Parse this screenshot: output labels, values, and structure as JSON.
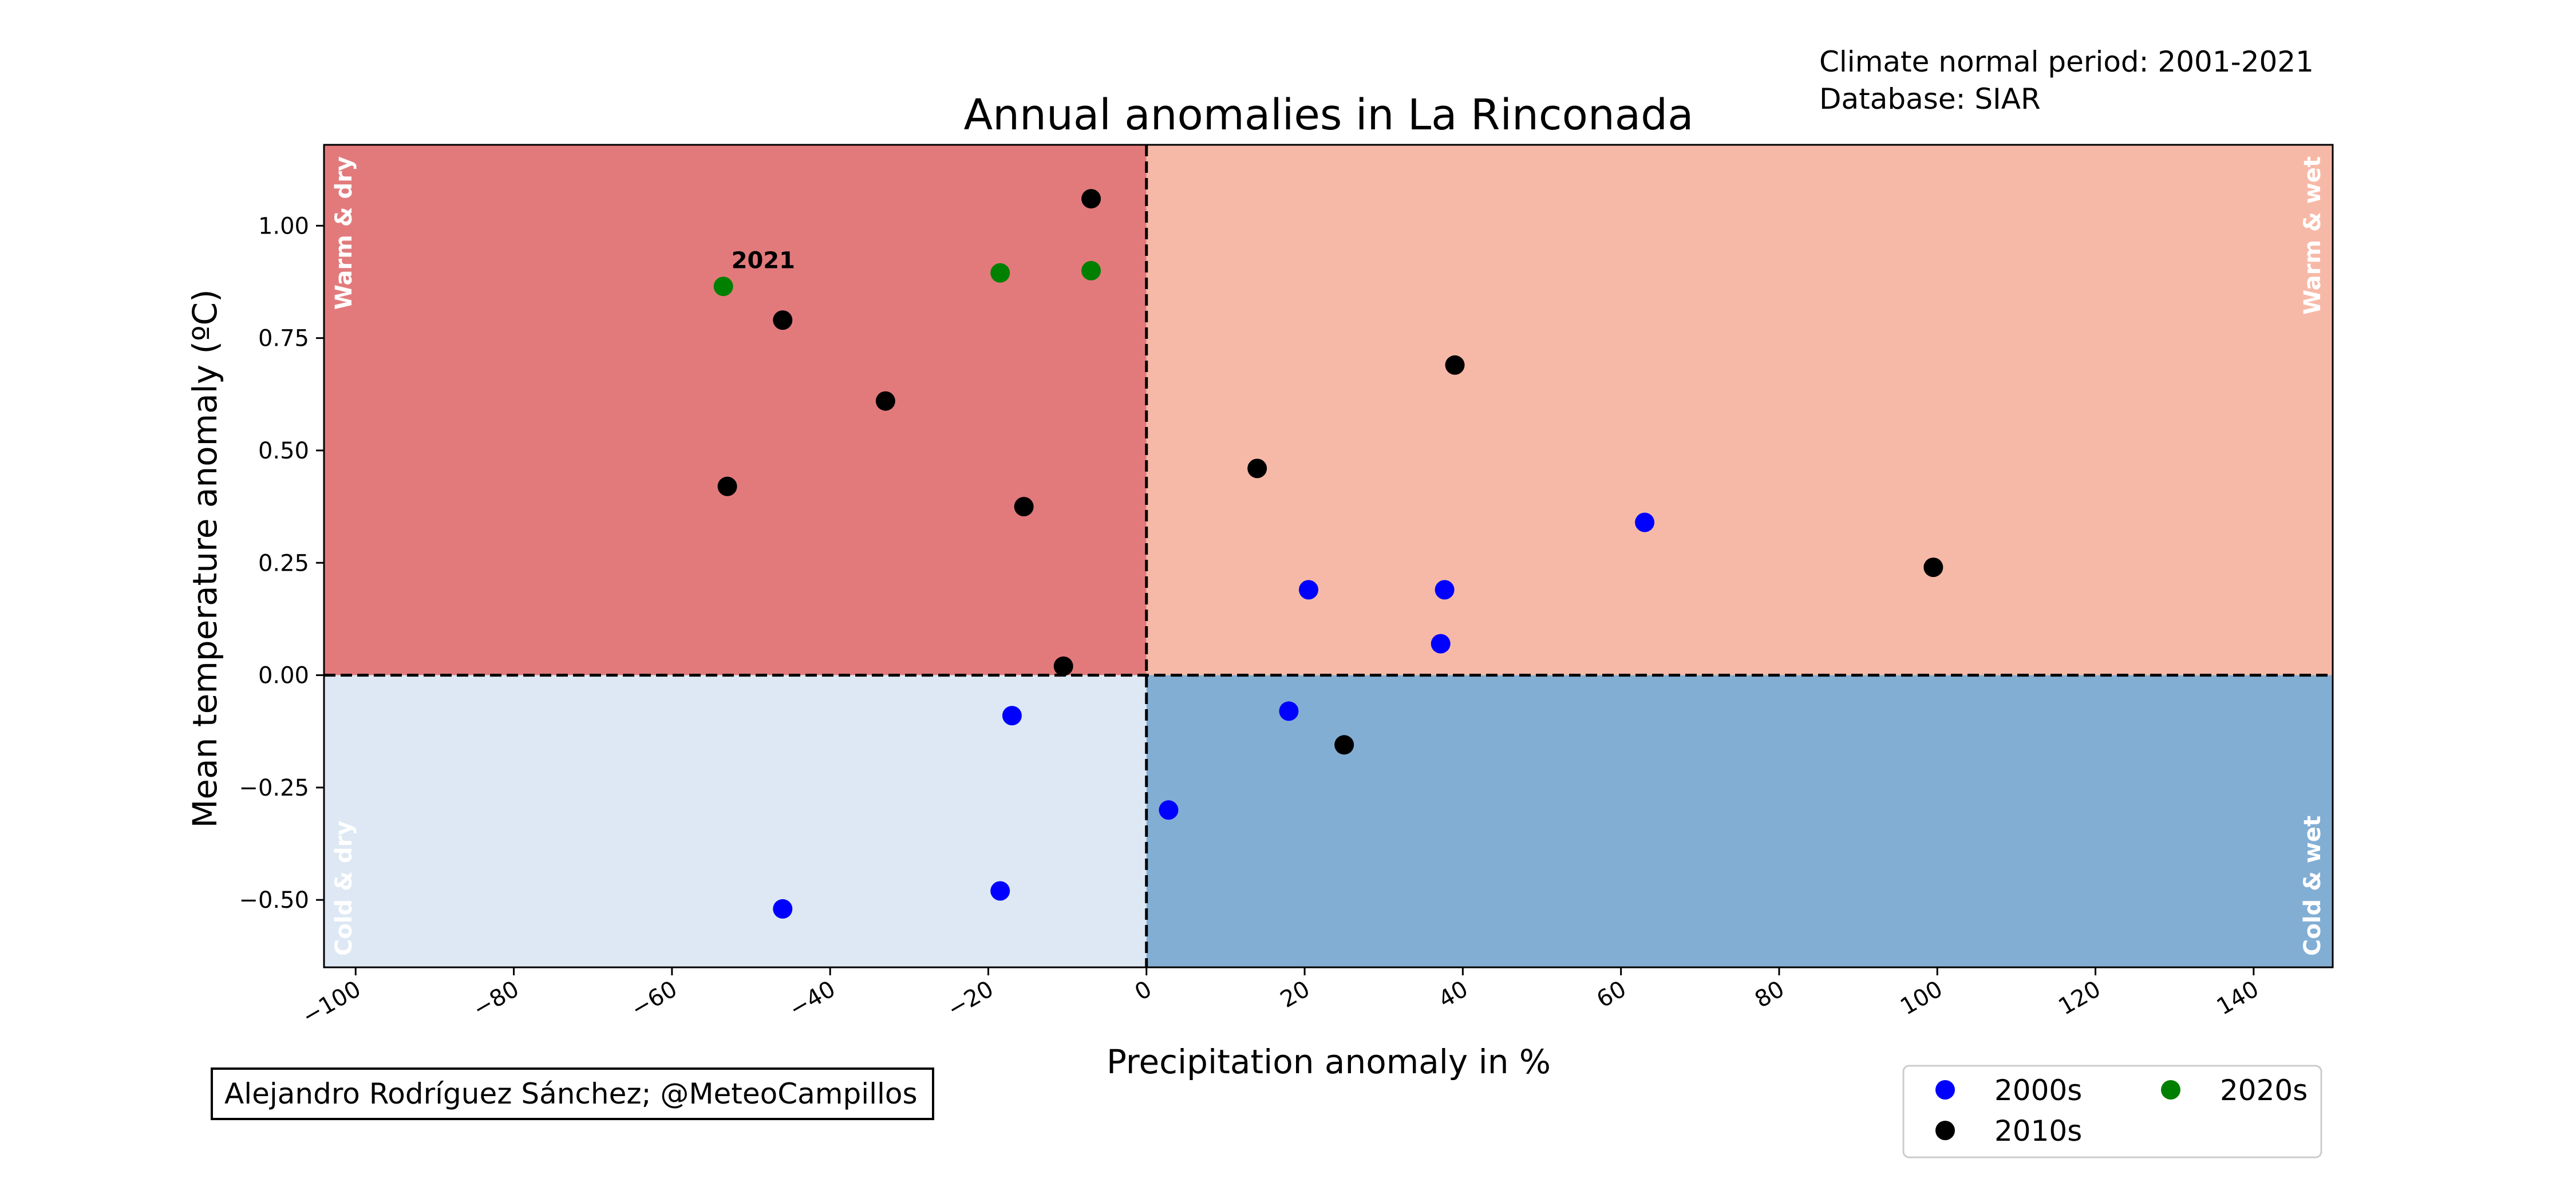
{
  "header": {
    "info_line1": "Climate normal period: 2001-2021",
    "info_line2": "Database: SIAR"
  },
  "credit": "Alejandro Rodríguez Sánchez; @MeteoCampillos",
  "colors": {
    "warm_dry": "#e27a7c",
    "warm_wet": "#f7b9a7",
    "cold_dry": "#dde8f4",
    "cold_wet": "#82aed4",
    "2000s": "#0000ff",
    "2010s": "#000000",
    "2020s": "#008000"
  },
  "chart_data": {
    "type": "scatter",
    "title": "Annual anomalies in La Rinconada",
    "xlabel": "Precipitation anomaly in %",
    "ylabel": "Mean temperature anomaly (ºC)",
    "xlim": [
      -104,
      150
    ],
    "ylim": [
      -0.65,
      1.18
    ],
    "xticks": [
      -100,
      -80,
      -60,
      -40,
      -20,
      0,
      20,
      40,
      60,
      80,
      100,
      120,
      140
    ],
    "xtick_labels": [
      "−100",
      "−80",
      "−60",
      "−40",
      "−20",
      "0",
      "20",
      "40",
      "60",
      "80",
      "100",
      "120",
      "140"
    ],
    "yticks": [
      -0.5,
      -0.25,
      0,
      0.25,
      0.5,
      0.75,
      1.0
    ],
    "ytick_labels": [
      "−0.50",
      "−0.25",
      "0.00",
      "0.25",
      "0.50",
      "0.75",
      "1.00"
    ],
    "grid": false,
    "reference_lines": {
      "x": 0,
      "y": 0,
      "style": "dashed"
    },
    "quadrant_labels": {
      "warm_dry": "Warm & dry",
      "warm_wet": "Warm & wet",
      "cold_dry": "Cold & dry",
      "cold_wet": "Cold & wet"
    },
    "legend": {
      "placement": "lower-right",
      "columns": 2
    },
    "series": [
      {
        "name": "2000s",
        "color": "#0000ff",
        "points": [
          [
            63,
            0.34
          ],
          [
            20.5,
            0.19
          ],
          [
            37.7,
            0.19
          ],
          [
            37.2,
            0.07
          ],
          [
            18,
            -0.08
          ],
          [
            -17,
            -0.09
          ],
          [
            2.8,
            -0.3
          ],
          [
            -18.5,
            -0.48
          ],
          [
            -46,
            -0.52
          ]
        ]
      },
      {
        "name": "2010s",
        "color": "#000000",
        "points": [
          [
            -7,
            1.06
          ],
          [
            -46,
            0.79
          ],
          [
            39,
            0.69
          ],
          [
            -33,
            0.61
          ],
          [
            14,
            0.46
          ],
          [
            -53,
            0.42
          ],
          [
            -15.5,
            0.375
          ],
          [
            99.5,
            0.24
          ],
          [
            -10.5,
            0.02
          ],
          [
            25,
            -0.155
          ]
        ]
      },
      {
        "name": "2020s",
        "color": "#008000",
        "points": [
          [
            -18.5,
            0.895
          ],
          [
            -7,
            0.9
          ],
          [
            -53.5,
            0.865
          ]
        ]
      }
    ],
    "annotations": [
      {
        "text": "2021",
        "x": -53.5,
        "y": 0.865
      }
    ]
  }
}
